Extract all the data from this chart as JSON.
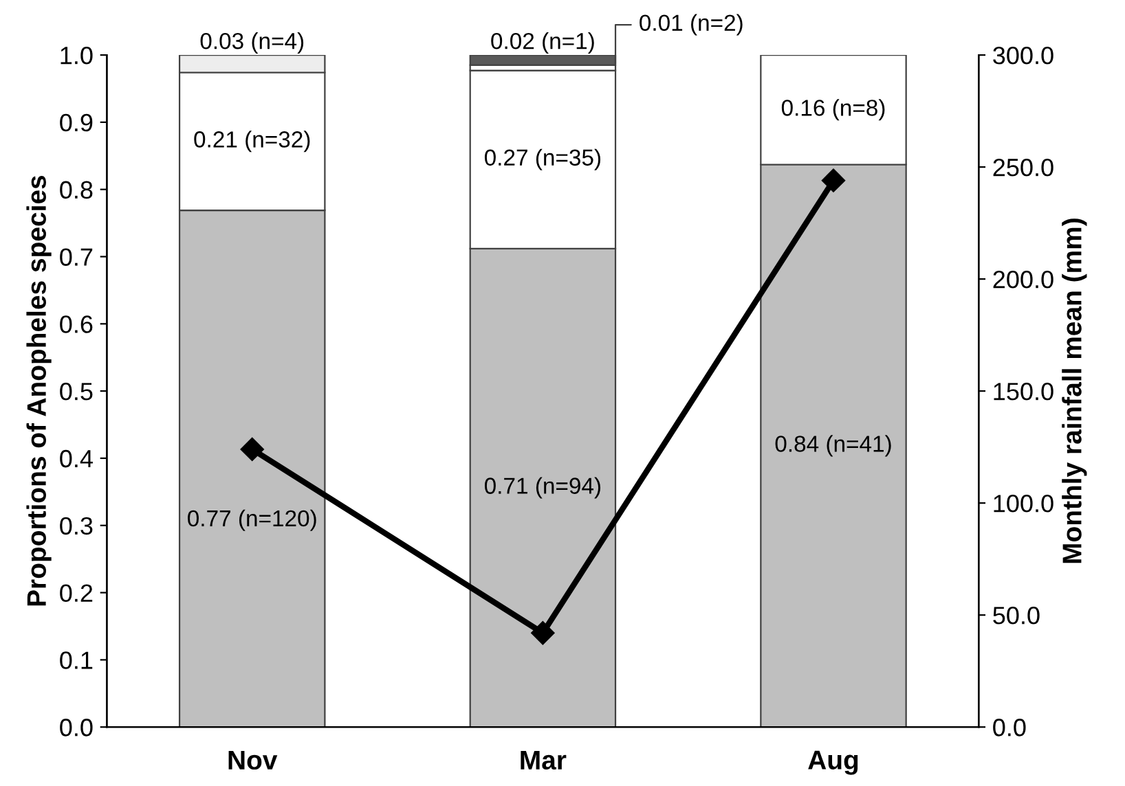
{
  "chart_data": {
    "type": "bar",
    "stacked": true,
    "categories": [
      "Nov",
      "Mar",
      "Aug"
    ],
    "ylabel": "Proportions of Anopheles species",
    "y2label": "Monthly rainfall mean (mm)",
    "ylim": [
      0,
      1.0
    ],
    "yticks": [
      {
        "value": 0,
        "label": "0.0"
      },
      {
        "value": 0.1,
        "label": "0.1"
      },
      {
        "value": 0.2,
        "label": "0.2"
      },
      {
        "value": 0.3,
        "label": "0.3"
      },
      {
        "value": 0.4,
        "label": "0.4"
      },
      {
        "value": 0.5,
        "label": "0.5"
      },
      {
        "value": 0.6,
        "label": "0.6"
      },
      {
        "value": 0.7,
        "label": "0.7"
      },
      {
        "value": 0.8,
        "label": "0.8"
      },
      {
        "value": 0.9,
        "label": "0.9"
      },
      {
        "value": 1.0,
        "label": "1.0"
      }
    ],
    "y2lim": [
      0,
      300
    ],
    "y2ticks": [
      {
        "value": 0,
        "label": "0.0"
      },
      {
        "value": 50,
        "label": "50.0"
      },
      {
        "value": 100,
        "label": "100.0"
      },
      {
        "value": 150,
        "label": "150.0"
      },
      {
        "value": 200,
        "label": "200.0"
      },
      {
        "value": 250,
        "label": "250.0"
      },
      {
        "value": 300,
        "label": "300.0"
      }
    ],
    "grid": false,
    "legend": false,
    "series": [
      {
        "color": "#bfbfbf",
        "values": [
          0.769,
          0.712,
          0.837
        ],
        "value_labels": [
          "0.77 (n=120)",
          "0.71 (n=94)",
          "0.84 (n=41)"
        ]
      },
      {
        "color": "#ffffff",
        "values": [
          0.205,
          0.265,
          0.163
        ],
        "value_labels": [
          "0.21 (n=32)",
          "0.27 (n=35)",
          "0.16 (n=8)"
        ]
      },
      {
        "color": "#ededed",
        "values": [
          0.026,
          null,
          null
        ],
        "value_labels": [
          "0.03 (n=4)",
          null,
          null
        ]
      },
      {
        "color": "#ffffff",
        "values": [
          null,
          0.008,
          null
        ],
        "value_labels": [
          null,
          "0.01 (n=2)",
          null
        ]
      },
      {
        "color": "#595959",
        "values": [
          null,
          0.015,
          null
        ],
        "value_labels": [
          null,
          "0.02 (n=1)",
          null
        ]
      },
      {
        "type": "line",
        "axis": "y2",
        "color": "#000000",
        "marker": "diamond",
        "line_style": "solid",
        "values": [
          124,
          42,
          244
        ]
      }
    ]
  }
}
